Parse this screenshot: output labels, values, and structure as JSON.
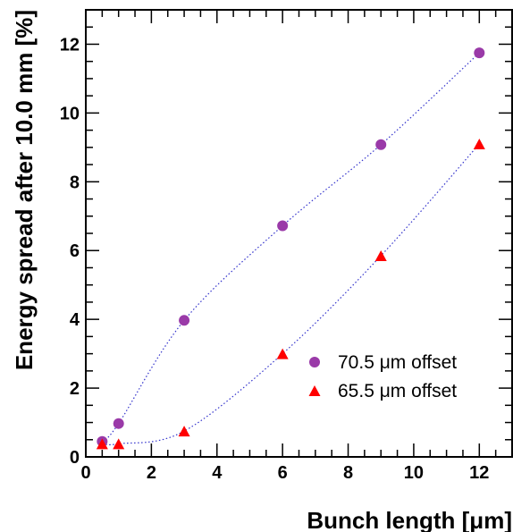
{
  "chart_data": {
    "type": "scatter",
    "title": "",
    "xlabel": "Bunch length [μm]",
    "ylabel": "Energy spread after 10.0 mm [%]",
    "xlim": [
      0,
      13
    ],
    "ylim": [
      0,
      13
    ],
    "xticks": [
      0,
      2,
      4,
      6,
      8,
      10,
      12
    ],
    "yticks": [
      0,
      2,
      4,
      6,
      8,
      10,
      12
    ],
    "grid": false,
    "legend_position": "lower-right",
    "series": [
      {
        "name": "70.5 μm offset",
        "marker": "circle",
        "color": "#9a3aa8",
        "x": [
          0.5,
          1,
          3,
          6,
          9,
          12
        ],
        "y": [
          0.45,
          0.97,
          3.97,
          6.72,
          9.08,
          11.75
        ]
      },
      {
        "name": "65.5 μm offset",
        "marker": "triangle",
        "color": "#ff0000",
        "x": [
          0.5,
          1,
          3,
          6,
          9,
          12
        ],
        "y": [
          0.38,
          0.38,
          0.75,
          3.0,
          5.85,
          9.1
        ]
      }
    ],
    "fit_line_color": "#3333cc"
  }
}
